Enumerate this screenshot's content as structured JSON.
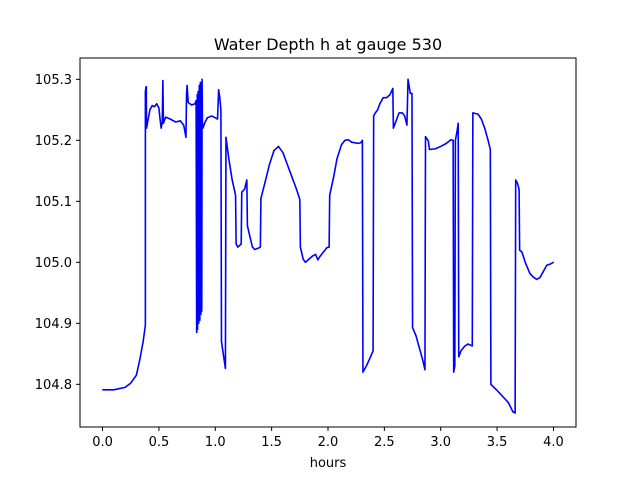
{
  "chart_data": {
    "type": "line",
    "title": "Water Depth h at gauge 530",
    "xlabel": "hours",
    "ylabel": "",
    "xlim": [
      -0.2,
      4.2
    ],
    "ylim": [
      104.73,
      105.335
    ],
    "xticks": [
      "0.0",
      "0.5",
      "1.0",
      "1.5",
      "2.0",
      "2.5",
      "3.0",
      "3.5",
      "4.0"
    ],
    "yticks": [
      "104.8",
      "104.9",
      "105.0",
      "105.1",
      "105.2",
      "105.3"
    ],
    "grid": false,
    "legend": "none",
    "series": [
      {
        "color": "#0000ff",
        "points": [
          [
            0.0,
            104.791
          ],
          [
            0.1,
            104.791
          ],
          [
            0.2,
            104.795
          ],
          [
            0.25,
            104.802
          ],
          [
            0.3,
            104.815
          ],
          [
            0.33,
            104.84
          ],
          [
            0.36,
            104.87
          ],
          [
            0.38,
            104.897
          ],
          [
            0.38,
            105.28
          ],
          [
            0.385,
            105.287
          ],
          [
            0.388,
            105.288
          ],
          [
            0.39,
            105.22
          ],
          [
            0.42,
            105.25
          ],
          [
            0.44,
            105.257
          ],
          [
            0.46,
            105.255
          ],
          [
            0.48,
            105.26
          ],
          [
            0.5,
            105.253
          ],
          [
            0.51,
            105.235
          ],
          [
            0.52,
            105.22
          ],
          [
            0.53,
            105.23
          ],
          [
            0.535,
            105.298
          ],
          [
            0.54,
            105.228
          ],
          [
            0.56,
            105.238
          ],
          [
            0.6,
            105.235
          ],
          [
            0.65,
            105.23
          ],
          [
            0.69,
            105.232
          ],
          [
            0.72,
            105.225
          ],
          [
            0.74,
            105.205
          ],
          [
            0.745,
            105.275
          ],
          [
            0.75,
            105.29
          ],
          [
            0.76,
            105.262
          ],
          [
            0.79,
            105.258
          ],
          [
            0.82,
            105.26
          ],
          [
            0.83,
            105.265
          ],
          [
            0.835,
            104.885
          ],
          [
            0.84,
            105.275
          ],
          [
            0.843,
            104.89
          ],
          [
            0.848,
            105.28
          ],
          [
            0.853,
            104.9
          ],
          [
            0.858,
            105.29
          ],
          [
            0.863,
            104.905
          ],
          [
            0.868,
            105.295
          ],
          [
            0.873,
            104.915
          ],
          [
            0.878,
            105.295
          ],
          [
            0.88,
            104.92
          ],
          [
            0.883,
            105.3
          ],
          [
            0.886,
            105.23
          ],
          [
            0.89,
            105.22
          ],
          [
            0.91,
            105.23
          ],
          [
            0.93,
            105.237
          ],
          [
            0.97,
            105.24
          ],
          [
            1.0,
            105.237
          ],
          [
            1.01,
            105.236
          ],
          [
            1.02,
            105.235
          ],
          [
            1.03,
            105.283
          ],
          [
            1.04,
            105.27
          ],
          [
            1.05,
            105.25
          ],
          [
            1.055,
            104.87
          ],
          [
            1.09,
            104.826
          ],
          [
            1.095,
            105.205
          ],
          [
            1.12,
            105.17
          ],
          [
            1.15,
            105.135
          ],
          [
            1.18,
            105.11
          ],
          [
            1.185,
            105.03
          ],
          [
            1.2,
            105.025
          ],
          [
            1.23,
            105.03
          ],
          [
            1.235,
            105.115
          ],
          [
            1.26,
            105.12
          ],
          [
            1.28,
            105.135
          ],
          [
            1.285,
            105.06
          ],
          [
            1.31,
            105.04
          ],
          [
            1.33,
            105.025
          ],
          [
            1.35,
            105.021
          ],
          [
            1.38,
            105.023
          ],
          [
            1.4,
            105.025
          ],
          [
            1.405,
            105.105
          ],
          [
            1.44,
            105.13
          ],
          [
            1.48,
            105.16
          ],
          [
            1.52,
            105.183
          ],
          [
            1.56,
            105.19
          ],
          [
            1.6,
            105.18
          ],
          [
            1.64,
            105.16
          ],
          [
            1.68,
            105.14
          ],
          [
            1.72,
            105.12
          ],
          [
            1.75,
            105.103
          ],
          [
            1.755,
            105.025
          ],
          [
            1.78,
            105.005
          ],
          [
            1.8,
            105.0
          ],
          [
            1.83,
            105.005
          ],
          [
            1.86,
            105.01
          ],
          [
            1.89,
            105.013
          ],
          [
            1.91,
            105.004
          ],
          [
            1.93,
            105.01
          ],
          [
            1.96,
            105.017
          ],
          [
            1.99,
            105.024
          ],
          [
            2.01,
            105.025
          ],
          [
            2.015,
            105.11
          ],
          [
            2.05,
            105.14
          ],
          [
            2.08,
            105.17
          ],
          [
            2.12,
            105.193
          ],
          [
            2.15,
            105.2
          ],
          [
            2.18,
            105.201
          ],
          [
            2.21,
            105.197
          ],
          [
            2.24,
            105.196
          ],
          [
            2.27,
            105.195
          ],
          [
            2.29,
            105.196
          ],
          [
            2.305,
            105.2
          ],
          [
            2.31,
            104.82
          ],
          [
            2.34,
            104.83
          ],
          [
            2.37,
            104.842
          ],
          [
            2.4,
            104.855
          ],
          [
            2.405,
            105.24
          ],
          [
            2.42,
            105.245
          ],
          [
            2.44,
            105.25
          ],
          [
            2.46,
            105.26
          ],
          [
            2.49,
            105.27
          ],
          [
            2.52,
            105.27
          ],
          [
            2.55,
            105.275
          ],
          [
            2.575,
            105.285
          ],
          [
            2.58,
            105.22
          ],
          [
            2.6,
            105.23
          ],
          [
            2.63,
            105.245
          ],
          [
            2.66,
            105.245
          ],
          [
            2.68,
            105.24
          ],
          [
            2.7,
            105.225
          ],
          [
            2.71,
            105.3
          ],
          [
            2.73,
            105.277
          ],
          [
            2.745,
            105.277
          ],
          [
            2.75,
            104.893
          ],
          [
            2.78,
            104.88
          ],
          [
            2.81,
            104.86
          ],
          [
            2.84,
            104.84
          ],
          [
            2.86,
            104.824
          ],
          [
            2.865,
            105.206
          ],
          [
            2.89,
            105.199
          ],
          [
            2.9,
            105.185
          ],
          [
            2.95,
            105.186
          ],
          [
            3.0,
            105.19
          ],
          [
            3.05,
            105.195
          ],
          [
            3.09,
            105.201
          ],
          [
            3.11,
            105.2
          ],
          [
            3.115,
            104.82
          ],
          [
            3.125,
            104.83
          ],
          [
            3.13,
            105.2
          ],
          [
            3.145,
            105.215
          ],
          [
            3.155,
            105.228
          ],
          [
            3.16,
            104.845
          ],
          [
            3.18,
            104.855
          ],
          [
            3.21,
            104.862
          ],
          [
            3.24,
            104.866
          ],
          [
            3.28,
            104.863
          ],
          [
            3.285,
            105.245
          ],
          [
            3.33,
            105.243
          ],
          [
            3.36,
            105.235
          ],
          [
            3.39,
            105.22
          ],
          [
            3.42,
            105.2
          ],
          [
            3.44,
            105.185
          ],
          [
            3.445,
            104.8
          ],
          [
            3.5,
            104.79
          ],
          [
            3.55,
            104.78
          ],
          [
            3.6,
            104.77
          ],
          [
            3.64,
            104.755
          ],
          [
            3.66,
            104.753
          ],
          [
            3.665,
            105.135
          ],
          [
            3.68,
            105.13
          ],
          [
            3.695,
            105.12
          ],
          [
            3.7,
            105.02
          ],
          [
            3.72,
            105.017
          ],
          [
            3.75,
            105.0
          ],
          [
            3.79,
            104.982
          ],
          [
            3.82,
            104.976
          ],
          [
            3.85,
            104.972
          ],
          [
            3.88,
            104.975
          ],
          [
            3.91,
            104.985
          ],
          [
            3.94,
            104.995
          ],
          [
            3.97,
            104.997
          ],
          [
            4.0,
            105.0
          ]
        ]
      }
    ]
  }
}
